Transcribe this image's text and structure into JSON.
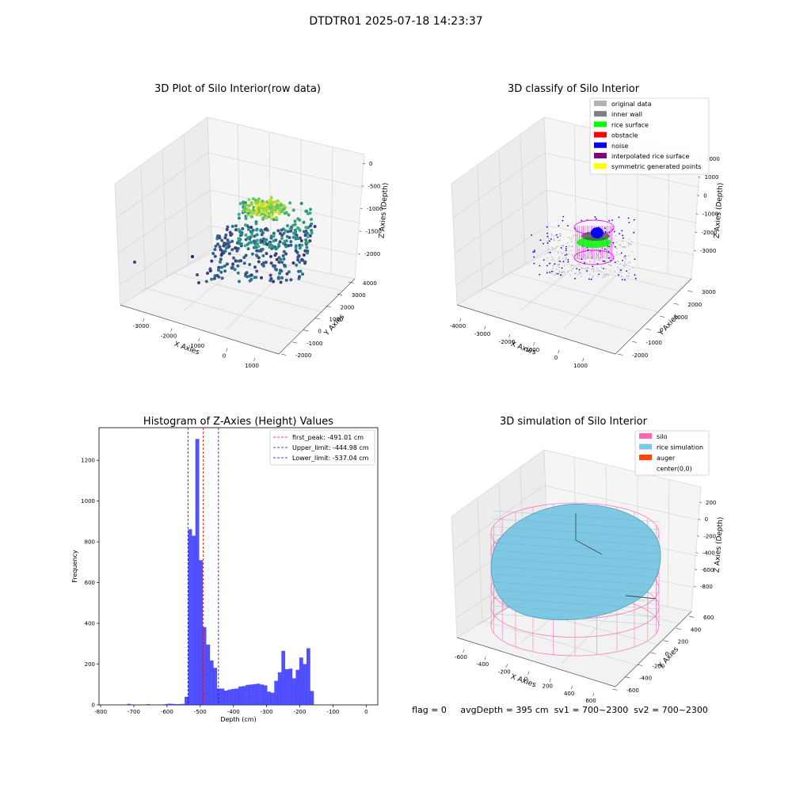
{
  "suptitle": "DTDTR01 2025-07-18 14:23:37",
  "footer": "flag = 0     avgDepth = 395 cm  sv1 = 700~2300  sv2 = 700~2300",
  "colors": {
    "surface_fill": "#7ec8e3",
    "silo": "#ff69b4",
    "auger": "#ff4500",
    "original": "#b3b3b3",
    "inner_wall": "#808080",
    "rice": "#00ff00",
    "obstacle": "#ff0000",
    "noise": "#0000ff",
    "interp": "#800080",
    "sym": "#ffff00",
    "hist_bar": "#3333ff",
    "peak_line": "#ff0000",
    "limit_line": "#0000ff"
  },
  "chart_data": [
    {
      "type": "scatter",
      "title": "3D Plot of Silo Interior(row data)",
      "xlabel": "X Axies",
      "ylabel": "Y Axies",
      "zlabel": "Z Axies (Depth)",
      "xticks": [
        "-3000",
        "-2000",
        "-1000",
        "0",
        "1000"
      ],
      "yticks": [
        "-2000",
        "-1000",
        "0",
        "1000",
        "2000",
        "3000",
        "4000"
      ],
      "zticks": [
        "0",
        "-500",
        "-1000",
        "-1500",
        "-2000"
      ],
      "colormap": "viridis"
    },
    {
      "type": "scatter",
      "title": "3D classify of Silo Interior",
      "xlabel": "X Axies",
      "ylabel": "Y Axies",
      "zlabel": "Z Axies (Depth)",
      "xticks": [
        "-4000",
        "-3000",
        "-2000",
        "-1000",
        "0",
        "1000"
      ],
      "yticks": [
        "-2000",
        "-1000",
        "0",
        "1000",
        "2000",
        "3000"
      ],
      "zticks": [
        "2000",
        "1000",
        "0",
        "-1000",
        "-2000",
        "-3000"
      ],
      "legend": [
        "original data",
        "inner wall",
        "rice surface",
        "obstacle",
        "noise",
        "interpolated rice surface",
        "symmetric generated points"
      ],
      "legend_position": "top-right"
    },
    {
      "type": "bar",
      "title": "Histogram of Z-Axies (Height) Values",
      "xlabel": "Depth (cm)",
      "ylabel": "Frequency",
      "xlim": [
        -805,
        35
      ],
      "ylim": [
        0,
        1360
      ],
      "xticks": [
        -800,
        -700,
        -600,
        -500,
        -400,
        -300,
        -200,
        -100,
        0
      ],
      "yticks": [
        0,
        200,
        400,
        600,
        800,
        1000,
        1200
      ],
      "bin_width": 10.8,
      "bin_starts": [
        -720,
        -662,
        -609,
        -599,
        -590,
        -580,
        -569,
        -558,
        -547,
        -537,
        -526,
        -515,
        -504,
        -493,
        -482,
        -472,
        -461,
        -450,
        -439,
        -428,
        -417,
        -407,
        -396,
        -385,
        -374,
        -363,
        -353,
        -342,
        -331,
        -320,
        -309,
        -299,
        -288,
        -277,
        -266,
        -255,
        -245,
        -234,
        -223,
        -212,
        -201,
        -191,
        -180,
        -169,
        -158,
        -147,
        -136,
        -126,
        -115,
        -104,
        -93,
        -82,
        -72,
        -61,
        -50,
        -39,
        -28,
        -18,
        -7
      ],
      "values": [
        5,
        4,
        4,
        6,
        5,
        4,
        4,
        5,
        4,
        40,
        862,
        830,
        1305,
        710,
        382,
        296,
        218,
        182,
        80,
        80,
        70,
        75,
        78,
        80,
        90,
        92,
        98,
        100,
        102,
        104,
        100,
        96,
        65,
        60,
        118,
        160,
        265,
        175,
        178,
        130,
        172,
        232,
        200,
        278,
        68
      ],
      "value_bin_offset": 14,
      "peak_label": "first_peak: -491.01 cm",
      "upper_label": "Upper_limit: -444.98 cm",
      "lower_label": "Lower_limit: -537.04 cm",
      "first_peak": -491.01,
      "upper_limit": -444.98,
      "lower_limit": -537.04,
      "legend_position": "top-right"
    },
    {
      "type": "scatter",
      "title": "3D simulation of Silo Interior",
      "xlabel": "X Axies",
      "ylabel": "Y Axies",
      "zlabel": "Z Axies (Depth)",
      "xticks": [
        "-600",
        "-400",
        "-200",
        "0",
        "200",
        "400",
        "600"
      ],
      "yticks": [
        "-600",
        "-400",
        "-200",
        "0",
        "200",
        "400",
        "600"
      ],
      "zticks": [
        "200",
        "0",
        "-200",
        "-400",
        "-600",
        "-800"
      ],
      "legend": [
        "silo",
        "rice simulation",
        "auger",
        "center(0,0)"
      ],
      "legend_position": "top-right"
    }
  ]
}
